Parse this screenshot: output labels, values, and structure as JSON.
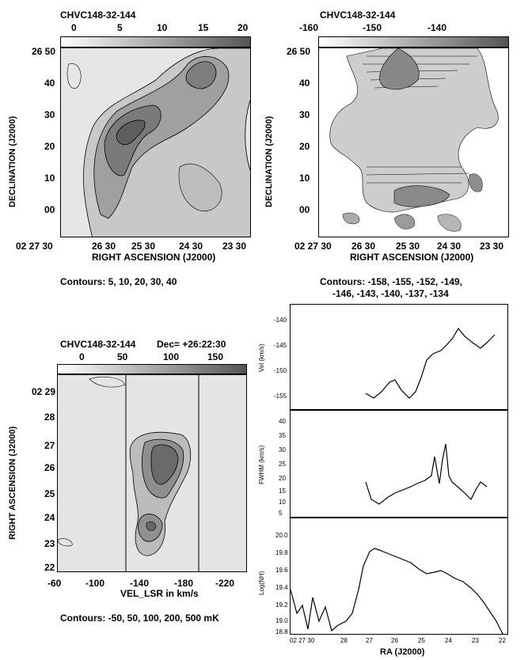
{
  "panel_a": {
    "title": "CHVC148-32-144",
    "colorbar_ticks": [
      "0",
      "5",
      "10",
      "15",
      "20"
    ],
    "dec_ticks": [
      "26 50",
      "40",
      "30",
      "20",
      "10",
      "00"
    ],
    "ra_ticks": [
      "02 27 30",
      "26 30",
      "25 30",
      "24 30",
      "23 30"
    ],
    "ylabel": "DECLINATION (J2000)",
    "xlabel": "RIGHT ASCENSION (J2000)",
    "contours": "Contours: 5, 10, 20, 30, 40"
  },
  "panel_b": {
    "title": "CHVC148-32-144",
    "colorbar_ticks": [
      "-160",
      "-150",
      "-140"
    ],
    "dec_ticks": [
      "26 50",
      "40",
      "30",
      "20",
      "10",
      "00"
    ],
    "ra_ticks": [
      "02 27 30",
      "26 30",
      "25 30",
      "24 30",
      "23 30"
    ],
    "ylabel": "DECLINATION (J2000)",
    "xlabel": "RIGHT ASCENSION (J2000)",
    "contours_line1": "Contours: -158, -155, -152, -149,",
    "contours_line2": "-146, -143, -140, -137, -134"
  },
  "panel_c": {
    "title": "CHVC148-32-144",
    "dec_label": "Dec= +26:22:30",
    "colorbar_ticks": [
      "0",
      "50",
      "100",
      "150"
    ],
    "ra_ticks": [
      "02 29",
      "28",
      "27",
      "26",
      "25",
      "24",
      "23",
      "22"
    ],
    "vel_ticks": [
      "-60",
      "-100",
      "-140",
      "-180",
      "-220"
    ],
    "ylabel": "RIGHT ASCENSION (J2000)",
    "xlabel": "VEL_LSR in km/s",
    "contours": "Contours: -50, 50, 100, 200, 500 mK"
  },
  "panel_d": {
    "vel": {
      "ylabel": "Vel (km/s)",
      "ticks": [
        "-140",
        "-145",
        "-150",
        "-155"
      ]
    },
    "fwhm": {
      "ylabel": "FWHM (km/s)",
      "ticks": [
        "40",
        "35",
        "30",
        "25",
        "20",
        "15",
        "10",
        "5"
      ]
    },
    "nh": {
      "ylabel": "Log(NH)",
      "ticks": [
        "20.0",
        "19.8",
        "19.6",
        "19.4",
        "19.2",
        "19.0",
        "18.8"
      ]
    },
    "ra_ticks": [
      "02 27 30",
      "28",
      "27",
      "26",
      "25",
      "24",
      "23",
      "22"
    ],
    "xlabel": "RA (J2000)"
  },
  "colors": {
    "gray_light": "#e2e2e2",
    "gray_mid": "#a6a6a6",
    "gray_dark": "#6a6a6a"
  }
}
